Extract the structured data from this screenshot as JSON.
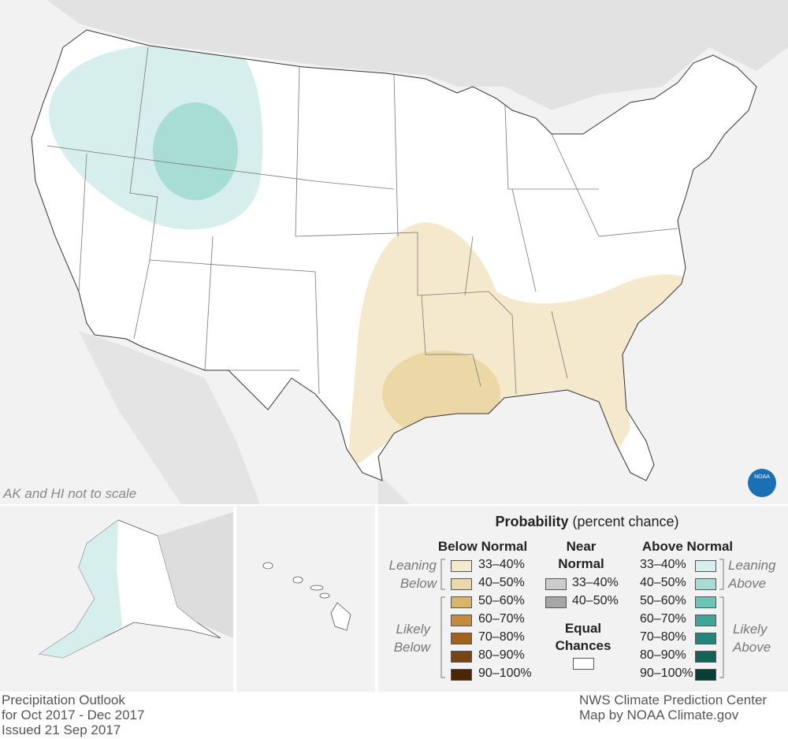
{
  "map": {
    "note": "AK and HI not to scale",
    "logo": "NOAA"
  },
  "legend": {
    "title": "Probability",
    "subtitle": "(percent chance)",
    "below": {
      "heading": "Below Normal",
      "leaning": "Leaning Below",
      "likely": "Likely Below",
      "items": [
        {
          "label": "33–40%",
          "color": "#f5e9cd"
        },
        {
          "label": "40–50%",
          "color": "#ecd7a6"
        },
        {
          "label": "50–60%",
          "color": "#d8b46c"
        },
        {
          "label": "60–70%",
          "color": "#c48b3c"
        },
        {
          "label": "70–80%",
          "color": "#a0621d"
        },
        {
          "label": "80–90%",
          "color": "#7a4410"
        },
        {
          "label": "90–100%",
          "color": "#4d2606"
        }
      ]
    },
    "near": {
      "heading": "Near Normal",
      "items": [
        {
          "label": "33–40%",
          "color": "#cccccc"
        },
        {
          "label": "40–50%",
          "color": "#a6a6a6"
        }
      ]
    },
    "equal": {
      "heading": "Equal Chances",
      "color": "#ffffff"
    },
    "above": {
      "heading": "Above Normal",
      "leaning": "Leaning Above",
      "likely": "Likely Above",
      "items": [
        {
          "label": "33–40%",
          "color": "#d6efec"
        },
        {
          "label": "40–50%",
          "color": "#a8ddd4"
        },
        {
          "label": "50–60%",
          "color": "#6cc4b8"
        },
        {
          "label": "60–70%",
          "color": "#3ea699"
        },
        {
          "label": "70–80%",
          "color": "#23857a"
        },
        {
          "label": "80–90%",
          "color": "#0f6558"
        },
        {
          "label": "90–100%",
          "color": "#053f35"
        }
      ]
    }
  },
  "footer": {
    "left": [
      "Precipitation Outlook",
      "for Oct 2017 - Dec 2017",
      "Issued 21 Sep 2017"
    ],
    "right": [
      "NWS Climate Prediction Center",
      "Map by NOAA Climate.gov"
    ]
  }
}
